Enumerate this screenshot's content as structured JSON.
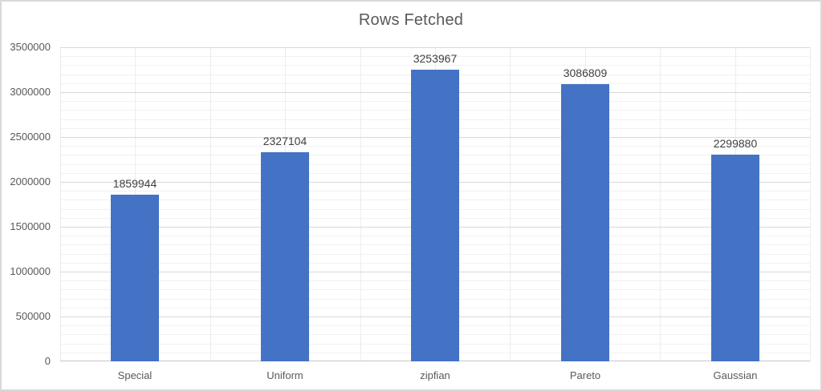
{
  "chart": {
    "title": "Rows Fetched"
  },
  "chart_data": {
    "type": "bar",
    "title": "Rows Fetched",
    "categories": [
      "Special",
      "Uniform",
      "zipfian",
      "Pareto",
      "Gaussian"
    ],
    "values": [
      1859944,
      2327104,
      3253967,
      3086809,
      2299880
    ],
    "data_labels": [
      "1859944",
      "2327104",
      "3253967",
      "3086809",
      "2299880"
    ],
    "xlabel": "",
    "ylabel": "",
    "ylim": [
      0,
      3500000
    ],
    "y_major_unit": 500000,
    "y_minor_unit": 100000,
    "y_tick_labels": [
      "0",
      "500000",
      "1000000",
      "1500000",
      "2000000",
      "2500000",
      "3000000",
      "3500000"
    ],
    "grid": true,
    "legend_position": "none",
    "colors": {
      "bar": "#4472C4",
      "title": "#595959",
      "axis_label": "#595959",
      "data_label": "#404040",
      "gridline_major": "#D9D9D9",
      "gridline_minor": "#F1F1F1",
      "gridline_vertical": "#ECECEC",
      "axis_line": "#C6C6C6",
      "frame": "#D9D9D7"
    }
  }
}
